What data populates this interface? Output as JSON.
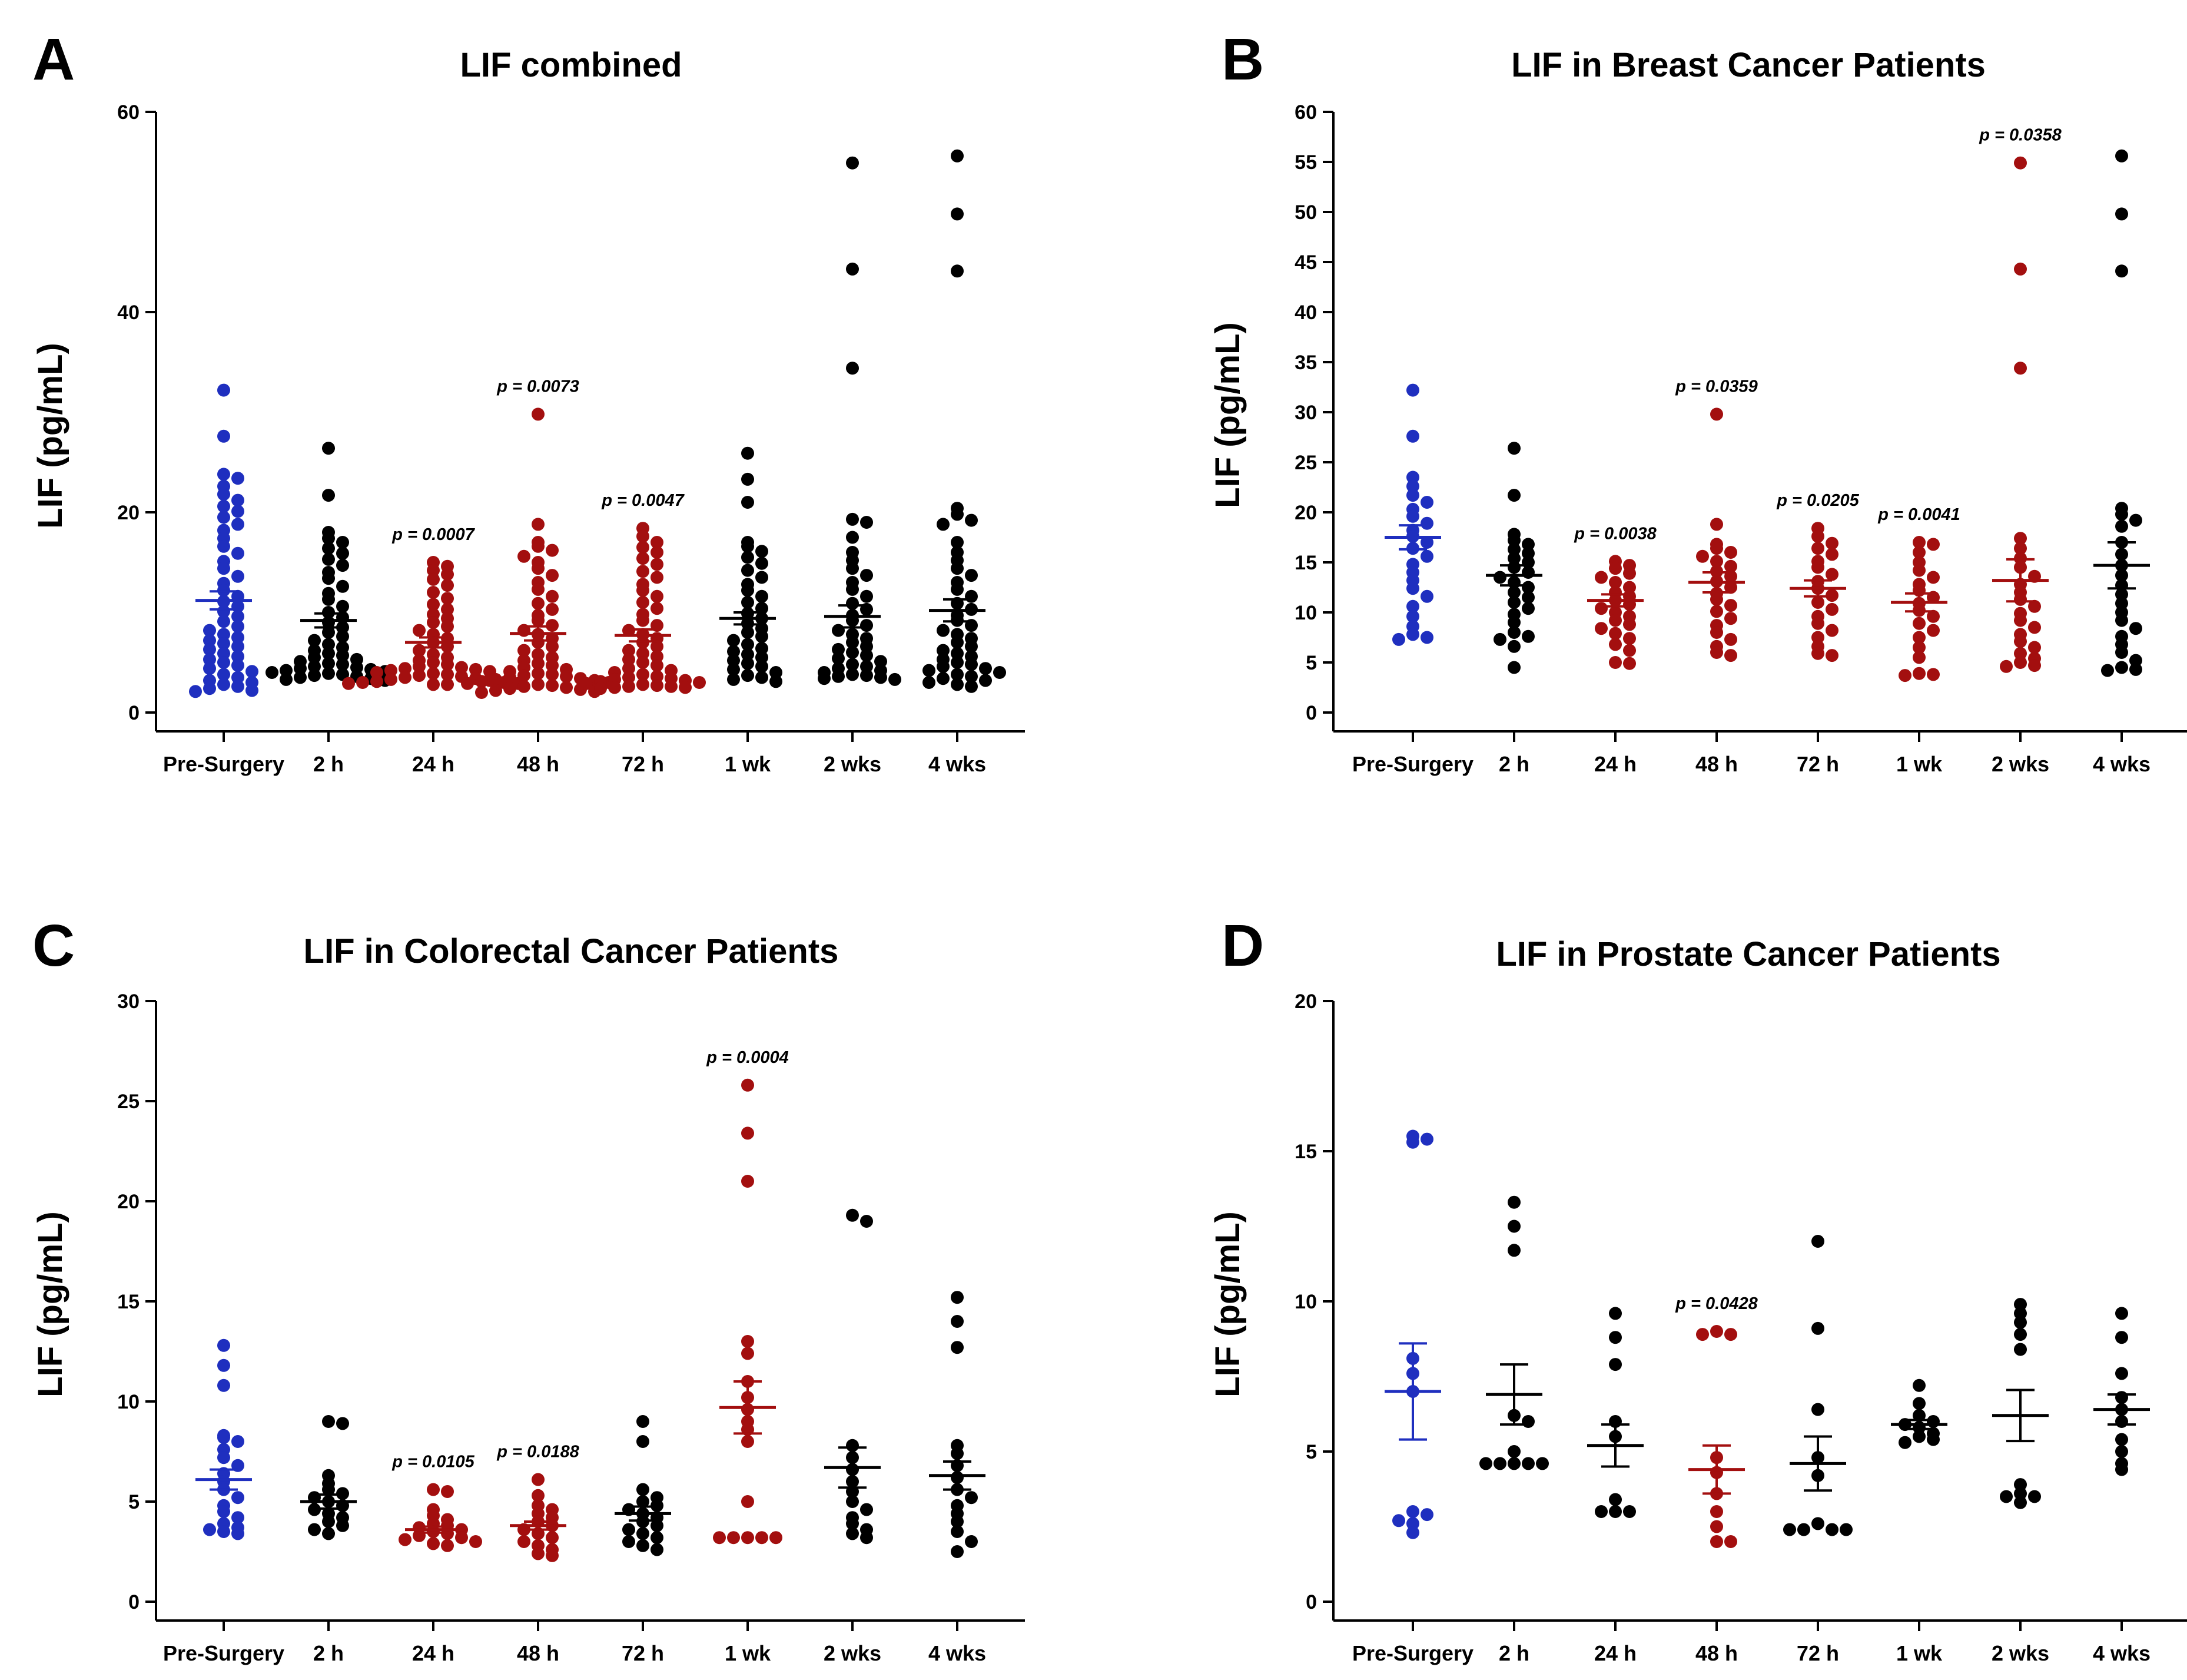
{
  "colors": {
    "blue": "#1f2fbf",
    "red": "#a30f0f",
    "black": "#000000"
  },
  "chart_data": [
    {
      "type": "scatter",
      "panel": "A",
      "title": "LIF combined",
      "ylabel": "LIF (pg/mL)",
      "xlabel": "",
      "categories": [
        "Pre-Surgery",
        "2 h",
        "24 h",
        "48 h",
        "72 h",
        "1 wk",
        "2 wks",
        "4 wks"
      ],
      "ylim": [
        0,
        60
      ],
      "yticks": [
        0,
        20,
        40,
        60
      ],
      "point_colors": [
        "blue",
        "black",
        "red",
        "red",
        "red",
        "black",
        "black",
        "black"
      ],
      "means": [
        11.2,
        9.2,
        7.0,
        7.9,
        7.7,
        9.4,
        9.6,
        10.2
      ],
      "sems": [
        0.9,
        0.7,
        0.5,
        0.7,
        0.6,
        0.6,
        1.1,
        1.1
      ],
      "pvalues": [
        "",
        "",
        "p = 0.0007",
        "p = 0.0073",
        "p = 0.0047",
        "",
        "",
        ""
      ],
      "values": [
        [
          32.2,
          27.6,
          23.8,
          23.4,
          22.6,
          21.8,
          21.2,
          20.6,
          20.1,
          19.5,
          18.8,
          18.2,
          17.4,
          16.6,
          15.9,
          15.1,
          14.4,
          13.6,
          12.9,
          12.2,
          11.6,
          11.1,
          10.6,
          10.1,
          9.6,
          9.1,
          8.6,
          8.2,
          7.8,
          7.5,
          7.2,
          6.9,
          6.6,
          6.3,
          5.9,
          5.6,
          5.3,
          5.0,
          4.7,
          4.4,
          4.1,
          3.8,
          3.5,
          3.2,
          3.0,
          2.8,
          2.6,
          2.4,
          2.2,
          2.1
        ],
        [
          26.4,
          21.7,
          18.0,
          17.4,
          17.0,
          16.4,
          15.9,
          15.3,
          14.7,
          14.0,
          13.4,
          12.6,
          11.9,
          11.3,
          10.6,
          10.0,
          9.5,
          9.0,
          8.5,
          8.0,
          7.6,
          7.2,
          6.8,
          6.5,
          6.2,
          5.9,
          5.7,
          5.5,
          5.3,
          5.1,
          4.9,
          4.8,
          4.6,
          4.5,
          4.4,
          4.3,
          4.2,
          4.1,
          4.0,
          3.9,
          3.8,
          3.7,
          3.6,
          3.5,
          3.4,
          3.3,
          3.2
        ],
        [
          15.0,
          14.6,
          14.2,
          13.8,
          13.3,
          12.7,
          12.0,
          11.4,
          10.8,
          10.3,
          9.8,
          9.4,
          9.0,
          8.6,
          8.2,
          7.8,
          7.4,
          7.0,
          6.6,
          6.2,
          5.8,
          5.5,
          5.2,
          5.0,
          4.8,
          4.6,
          4.5,
          4.4,
          4.3,
          4.2,
          4.1,
          4.0,
          3.9,
          3.8,
          3.7,
          3.6,
          3.5,
          3.4,
          3.3,
          3.2,
          3.1,
          3.0,
          3.0,
          2.9,
          2.9,
          2.8,
          2.8
        ],
        [
          29.8,
          18.8,
          17.0,
          16.6,
          16.2,
          15.6,
          15.0,
          14.4,
          13.7,
          13.0,
          12.3,
          11.6,
          10.9,
          10.3,
          9.7,
          9.2,
          8.7,
          8.2,
          7.8,
          7.4,
          7.0,
          6.6,
          6.2,
          5.8,
          5.5,
          5.2,
          4.9,
          4.7,
          4.5,
          4.3,
          4.1,
          3.9,
          3.8,
          3.7,
          3.6,
          3.5,
          3.4,
          3.3,
          3.2,
          3.1,
          3.0,
          2.9,
          2.8,
          2.7,
          2.6,
          2.5,
          2.4,
          2.3,
          2.2,
          2.1,
          2.0
        ],
        [
          18.4,
          17.6,
          17.0,
          16.5,
          16.0,
          15.4,
          14.8,
          14.1,
          13.5,
          12.8,
          12.2,
          11.6,
          11.0,
          10.4,
          9.8,
          9.2,
          8.7,
          8.2,
          7.8,
          7.4,
          7.0,
          6.6,
          6.2,
          5.9,
          5.6,
          5.3,
          5.0,
          4.7,
          4.4,
          4.2,
          4.0,
          3.8,
          3.6,
          3.5,
          3.4,
          3.3,
          3.2,
          3.1,
          3.0,
          2.9,
          2.8,
          2.7,
          2.6,
          2.6,
          2.5,
          2.5,
          2.4
        ],
        [
          25.9,
          23.3,
          21.0,
          17.0,
          16.6,
          16.1,
          15.5,
          14.9,
          14.2,
          13.5,
          12.8,
          12.2,
          11.6,
          11.0,
          10.4,
          9.9,
          9.4,
          8.9,
          8.4,
          8.0,
          7.6,
          7.2,
          6.8,
          6.4,
          6.1,
          5.8,
          5.5,
          5.2,
          4.9,
          4.6,
          4.3,
          4.0,
          3.7,
          3.5,
          3.3,
          3.1
        ],
        [
          54.9,
          44.3,
          34.4,
          19.3,
          19.0,
          17.5,
          16.0,
          15.2,
          14.4,
          13.7,
          13.0,
          12.3,
          11.6,
          10.9,
          10.3,
          9.7,
          9.2,
          8.7,
          8.2,
          7.8,
          7.4,
          7.0,
          6.6,
          6.3,
          6.0,
          5.7,
          5.4,
          5.1,
          4.8,
          4.6,
          4.4,
          4.2,
          4.0,
          3.8,
          3.7,
          3.6,
          3.5,
          3.4,
          3.3
        ],
        [
          55.6,
          49.8,
          44.1,
          20.4,
          19.8,
          19.2,
          18.8,
          17.0,
          16.0,
          15.2,
          14.4,
          13.7,
          13.0,
          12.3,
          11.6,
          10.9,
          10.3,
          9.7,
          9.2,
          8.7,
          8.2,
          7.8,
          7.4,
          7.0,
          6.6,
          6.2,
          5.9,
          5.6,
          5.3,
          5.0,
          4.8,
          4.6,
          4.4,
          4.2,
          4.0,
          3.8,
          3.6,
          3.4,
          3.2,
          3.0,
          2.8,
          2.6
        ]
      ]
    },
    {
      "type": "scatter",
      "panel": "B",
      "title": "LIF in Breast Cancer Patients",
      "ylabel": "LIF (pg/mL)",
      "xlabel": "",
      "categories": [
        "Pre-Surgery",
        "2 h",
        "24 h",
        "48 h",
        "72 h",
        "1 wk",
        "2 wks",
        "4 wks"
      ],
      "ylim": [
        0,
        60
      ],
      "yticks": [
        0,
        5,
        10,
        15,
        20,
        25,
        30,
        35,
        40,
        45,
        50,
        55,
        60
      ],
      "point_colors": [
        "blue",
        "black",
        "red",
        "red",
        "red",
        "red",
        "red",
        "black"
      ],
      "means": [
        17.5,
        13.7,
        11.2,
        13.0,
        12.4,
        11.0,
        13.2,
        14.7
      ],
      "sems": [
        1.2,
        1.0,
        0.6,
        1.0,
        0.8,
        0.9,
        2.1,
        2.3
      ],
      "pvalues": [
        "",
        "",
        "p = 0.0038",
        "p = 0.0359",
        "p = 0.0205",
        "p = 0.0041",
        "p = 0.0358",
        ""
      ],
      "values": [
        [
          32.2,
          27.6,
          23.5,
          22.6,
          21.7,
          21.0,
          20.3,
          19.6,
          18.9,
          18.2,
          17.6,
          17.0,
          16.4,
          15.6,
          14.8,
          14.0,
          13.2,
          12.4,
          11.6,
          10.6,
          9.6,
          8.6,
          7.8,
          7.5,
          7.3
        ],
        [
          26.4,
          21.7,
          17.8,
          17.2,
          16.8,
          16.3,
          15.9,
          15.4,
          15.0,
          14.5,
          14.0,
          13.5,
          13.0,
          12.5,
          12.0,
          11.5,
          11.0,
          10.4,
          9.8,
          9.0,
          8.0,
          7.6,
          7.3,
          6.6,
          4.5
        ],
        [
          15.1,
          14.7,
          14.4,
          13.9,
          13.5,
          13.0,
          12.5,
          12.0,
          11.6,
          11.2,
          10.8,
          10.4,
          10.0,
          9.6,
          9.2,
          8.8,
          8.4,
          7.9,
          7.4,
          6.8,
          6.2,
          5.0,
          4.9
        ],
        [
          29.8,
          18.8,
          16.8,
          16.4,
          16.0,
          15.6,
          15.1,
          14.6,
          14.1,
          13.6,
          13.1,
          12.5,
          11.9,
          11.3,
          10.7,
          10.1,
          9.4,
          8.7,
          8.0,
          7.3,
          6.6,
          6.0,
          5.7
        ],
        [
          18.4,
          17.6,
          16.9,
          16.4,
          15.8,
          15.1,
          14.5,
          13.8,
          13.1,
          12.4,
          11.7,
          11.0,
          10.3,
          9.6,
          8.9,
          8.2,
          7.5,
          6.6,
          5.9,
          5.7
        ],
        [
          17.0,
          16.8,
          16.0,
          15.0,
          14.2,
          13.5,
          12.8,
          12.2,
          11.5,
          10.9,
          10.2,
          9.6,
          8.9,
          8.2,
          7.5,
          6.5,
          5.5,
          3.9,
          3.8,
          3.7
        ],
        [
          54.9,
          44.3,
          34.4,
          17.4,
          16.4,
          15.4,
          14.5,
          13.6,
          12.8,
          12.0,
          11.3,
          10.6,
          9.9,
          9.2,
          8.5,
          7.8,
          7.1,
          6.5,
          5.9,
          5.4,
          5.0,
          4.7,
          4.6
        ],
        [
          55.6,
          49.8,
          44.1,
          20.4,
          19.8,
          19.2,
          18.6,
          17.0,
          15.8,
          14.7,
          13.7,
          12.7,
          11.8,
          10.9,
          10.0,
          9.2,
          8.4,
          7.6,
          6.8,
          6.0,
          5.2,
          4.5,
          4.3,
          4.2
        ]
      ]
    },
    {
      "type": "scatter",
      "panel": "C",
      "title": "LIF in Colorectal Cancer Patients",
      "ylabel": "LIF (pg/mL)",
      "xlabel": "",
      "categories": [
        "Pre-Surgery",
        "2 h",
        "24 h",
        "48 h",
        "72 h",
        "1 wk",
        "2 wks",
        "4 wks"
      ],
      "ylim": [
        0,
        30
      ],
      "yticks": [
        0,
        5,
        10,
        15,
        20,
        25,
        30
      ],
      "point_colors": [
        "blue",
        "black",
        "red",
        "red",
        "black",
        "red",
        "black",
        "black"
      ],
      "means": [
        6.1,
        5.0,
        3.6,
        3.8,
        4.4,
        9.7,
        6.7,
        6.3
      ],
      "sems": [
        0.5,
        0.35,
        0.15,
        0.2,
        0.35,
        1.3,
        1.0,
        0.7
      ],
      "pvalues": [
        "",
        "",
        "p = 0.0105",
        "p = 0.0188",
        "",
        "p = 0.0004",
        "",
        ""
      ],
      "values": [
        [
          12.8,
          11.8,
          10.8,
          8.3,
          8.2,
          8.0,
          7.6,
          7.2,
          6.8,
          6.4,
          6.0,
          5.6,
          5.2,
          4.8,
          4.5,
          4.2,
          3.9,
          3.7,
          3.6,
          3.5,
          3.4
        ],
        [
          9.0,
          8.9,
          6.3,
          5.9,
          5.6,
          5.4,
          5.2,
          5.0,
          4.8,
          4.6,
          4.4,
          4.2,
          4.0,
          3.8,
          3.6,
          3.4
        ],
        [
          5.6,
          5.5,
          4.6,
          4.3,
          4.1,
          3.9,
          3.8,
          3.7,
          3.6,
          3.5,
          3.4,
          3.3,
          3.2,
          3.1,
          3.0,
          2.9,
          2.8
        ],
        [
          6.1,
          5.3,
          4.8,
          4.6,
          4.4,
          4.2,
          4.0,
          3.8,
          3.6,
          3.4,
          3.2,
          3.0,
          2.8,
          2.6,
          2.4,
          2.3
        ],
        [
          9.0,
          8.0,
          5.6,
          5.2,
          5.0,
          4.8,
          4.6,
          4.4,
          4.2,
          4.0,
          3.8,
          3.6,
          3.4,
          3.2,
          3.0,
          2.8,
          2.6
        ],
        [
          25.8,
          23.4,
          21.0,
          13.0,
          12.4,
          11.0,
          10.2,
          9.6,
          9.0,
          8.6,
          8.0,
          5.0,
          3.2,
          3.2,
          3.2,
          3.2,
          3.2
        ],
        [
          19.3,
          19.0,
          7.8,
          7.2,
          6.6,
          6.0,
          5.5,
          5.0,
          4.6,
          4.2,
          3.9,
          3.6,
          3.4,
          3.2
        ],
        [
          15.2,
          14.0,
          12.7,
          7.8,
          7.4,
          6.8,
          6.2,
          5.6,
          5.2,
          4.8,
          4.4,
          4.0,
          3.5,
          3.0,
          2.5
        ]
      ]
    },
    {
      "type": "scatter",
      "panel": "D",
      "title": "LIF in Prostate Cancer Patients",
      "ylabel": "LIF (pg/mL)",
      "xlabel": "",
      "categories": [
        "Pre-Surgery",
        "2 h",
        "24 h",
        "48 h",
        "72 h",
        "1 wk",
        "2 wks",
        "4 wks"
      ],
      "ylim": [
        0,
        20
      ],
      "yticks": [
        0,
        5,
        10,
        15,
        20
      ],
      "point_colors": [
        "blue",
        "black",
        "black",
        "red",
        "black",
        "black",
        "black",
        "black"
      ],
      "means": [
        7.0,
        6.9,
        5.2,
        4.4,
        4.6,
        5.9,
        6.2,
        6.4
      ],
      "sems": [
        1.6,
        1.0,
        0.7,
        0.8,
        0.9,
        0.15,
        0.85,
        0.5
      ],
      "pvalues": [
        "",
        "",
        "",
        "p = 0.0428",
        "",
        "",
        "",
        ""
      ],
      "values": [
        [
          15.5,
          15.4,
          15.3,
          8.1,
          7.6,
          7.0,
          3.0,
          2.9,
          2.7,
          2.6,
          2.3
        ],
        [
          13.3,
          12.5,
          11.7,
          6.2,
          6.0,
          5.0,
          4.6,
          4.6,
          4.6,
          4.6,
          4.6
        ],
        [
          9.6,
          8.8,
          7.9,
          6.0,
          5.5,
          3.4,
          3.0,
          3.0,
          3.0
        ],
        [
          9.0,
          8.9,
          8.9,
          4.8,
          4.3,
          3.6,
          3.0,
          2.5,
          2.0,
          2.0
        ],
        [
          12.0,
          9.1,
          6.4,
          4.8,
          4.2,
          2.6,
          2.4,
          2.4,
          2.4,
          2.4
        ],
        [
          7.2,
          6.6,
          6.2,
          6.0,
          5.9,
          5.8,
          5.6,
          5.5,
          5.4,
          5.3
        ],
        [
          9.9,
          9.6,
          9.3,
          8.9,
          8.4,
          3.9,
          3.6,
          3.5,
          3.5,
          3.3
        ],
        [
          9.6,
          8.8,
          7.6,
          6.8,
          6.4,
          6.0,
          5.4,
          5.0,
          4.6,
          4.4
        ]
      ]
    }
  ]
}
